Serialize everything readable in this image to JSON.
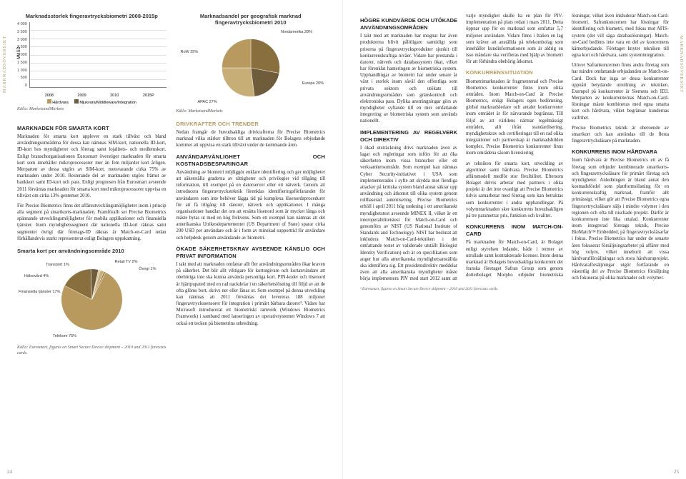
{
  "sideLabel": "MARKNADSÖVERSIKT",
  "pageLeft": "24",
  "pageRight": "25",
  "barChart": {
    "title": "Marknadsstorlek fingeravtrycksbiometri 2008-2015p",
    "ylabel": "MUSD",
    "yticks": [
      "4 000",
      "3 500",
      "3 000",
      "2 500",
      "2 000",
      "1 500",
      "1 000",
      "500",
      "0"
    ],
    "ymax": 4000,
    "categories": [
      "2008",
      "2009",
      "2010",
      "2015P"
    ],
    "hw": [
      900,
      1000,
      1150,
      2800
    ],
    "sw": [
      400,
      450,
      520,
      900
    ],
    "colors": {
      "hw": "#b89a5e",
      "sw": "#6f5c3a"
    },
    "legend": [
      "Hårdvara",
      "Mjukvara/Middleware/Integration"
    ],
    "source": "Källa: MarketsandMarkets"
  },
  "pieGeo": {
    "title": "Marknadsandel per geografisk marknad fingeravtrycksbiometri 2010",
    "slices": [
      {
        "label": "Nordamerika 28%",
        "value": 28,
        "color": "#8a6f3e"
      },
      {
        "label": "Europa 20%",
        "value": 20,
        "color": "#6f5c3a"
      },
      {
        "label": "APAC 27%",
        "value": 27,
        "color": "#c7ad76"
      },
      {
        "label": "RoW 25%",
        "value": 25,
        "color": "#b89a5e"
      }
    ],
    "source": "Källa: MarketsandMarkets"
  },
  "pieUse": {
    "title": "Smarta kort per användningsområde 2010",
    "slices": [
      {
        "label": "Telekom 75%",
        "value": 75,
        "color": "#b89a5e"
      },
      {
        "label": "Finansiella tjänster 17%",
        "value": 17,
        "color": "#8a6f3e"
      },
      {
        "label": "Hälsovård 4%",
        "value": 4,
        "color": "#6f5c3a"
      },
      {
        "label": "Transport 1%",
        "value": 1,
        "color": "#d6c29a"
      },
      {
        "label": "Retail TV 2%",
        "value": 2,
        "color": "#c7ad76"
      },
      {
        "label": "Övrigt 1%",
        "value": 1,
        "color": "#a08454"
      }
    ],
    "source": "Källa: Eurosmart, figures on Smart Secure Device shipment – 2010 and 2011 forecasts cards."
  },
  "left": {
    "h1": "MARKNADEN FÖR SMARTA KORT",
    "p1": "Marknaden för smarta kort upplever en stark tillväxt och bland användningsområdena för dessa kan nämnas SIM-kort, nationella ID-kort, ID-kort hos myndigheter och företag samt lojalitets- och medlemskort. Enligt branschorganisationen Eurosmart överstiger marknaden för smarta kort som innehåller mikroprocessorer mer än fem miljarder kort årligen. Merparten av dessa utgörs av SIM-kort, motsvarande cirka 75% av marknaden under 2010. Resterande del av marknaden utgörs främst av bankkort samt ID-kort och pass. Enligt prognosen från Eurosmart avseende 2011 förväntas marknaden för smarta kort med mikroprocessorer uppvisa en tillväxt om cirka 13% gentemot 2010.",
    "p2": "För Precise Biometrics finns det affärsutvecklingsmöjligheter inom i princip alla segment på smartkorts-marknaden. Framförallt ser Precise Biometrics spännande utvecklingsmöjligheter för mobila applikationer och finansiella tjänster. Inom myndighetssegment där nationella ID-kort räknas samt segmentet övrigt där företags-ID räknas är Match-on-Card redan förhållandevis starkt representerat enligt Bolagets uppskattning.",
    "h2": "DRIVKRAFTER OCH TRENDER",
    "p3": "Nedan framgår de huvudsakliga drivkrafterna för Precise Biometrics marknad vilka stärker tilltron till att marknaden för Bolagets erbjudande kommer att uppvisa en stark tillväxt under de kommande åren.",
    "h3": "ANVÄNDARVÄNLIGHET OCH KOSTNADSBESPARINGAR",
    "p4": "Användning av biometri möjliggör enklare identifiering och ger möjligheter att säkerställa graderna av rättigheter och privilegier vid tillgång till information, till exempel på en datorserver eller ett nätverk. Genom att introducera fingeravtrycksteknik förenklas identifieringsförfarandet för användaren som inte behöver lägga tid på komplexa lösenordsprocedurer för att få tillgång till datorer, nätverk och applikationer. I många organisationer handlar det om att ersätta lösenord som är mycket långa och måste bytas ut med en hög frekvens. Som ett exempel kan nämnas att det amerikanska Utrikesdepartementet (US Department of State) sparar cirka 200 USD per användare och år i form av minskad supporttid för användare och helpdesk genom användande av biometri.",
    "h4": "ÖKADE SÄKERHETSKRAV AVSEENDE KÄNSLIG OCH PRIVAT INFORMATION",
    "p5": "I takt med att marknaden omfattar allt fler användningsområden ökar kraven på säkerhet. Det blir allt viktigare för kortutgivare och kortanvändare att obehöriga inte ska kunna använda personliga kort. PIN-koder och lösenord är hjärtpupated med en rad nackdelar i en säkerhetslösning till följd av att de ofta glöms bort, skrivs ner eller lånas ut. Som exempel på denna utveckling kan nämnas att 2011 förväntas det levereras 188 miljoner fingeravtryckssensorer för integration i primärt bärbara datorer³. Vidare har Microsoft introducerat ett biometriskt ramverk (Windows Biometrics Framwork) i samband med lanseringen av operativsystemet Windows 7 att också ett tecken på biometrins utbredning."
  },
  "right": {
    "h1": "HÖGRE KUNDVÄRDE OCH UTÖKADE ANVÄNDNINGSOMRÅDEN",
    "p1": "I takt med att marknaden har mognat har även produkterna blivit pålitligare samtidigt som priserna på fingeravtrycksprodukter sjunkit till konkurrenskraftiga nivåer. Vidare har prestanda i datorer, nätverk och databassystem ökat, vilket har förenklat hanteringen av biometriska system. Upphandlingar av biometri har under senare år växt i storlek inom såväl den offentliga som privata sektorn och utökats till användningsområden som gränskontroll och elektroniska pass. Dylika ansträngningar görs av myndigheter syftande till en mer omfattande integrering av biometriska system som används nationellt.",
    "h2": "IMPLEMENTERING AV REGELVERK OCH DIREKTIV",
    "p2": "I ökad utsträckning drivs marknaden även av lagar och regleringar som införs för att öka säkerheten inom vissa branscher eller ett verksamhetsområde. Som exempel kan nämnas Cyber Security-initiativet i USA som implementerades i syfte att skydda mot fientliga attacker på kritiska system bland annat säkrar upp användning och åtkomst till olika system genom rollbaserad autentisering. Precise Biometrics erhöll i april 2011 hög rankning i ett amerikanskt myndighetstest avseende MINEX II, vilket är ett interoperabilitetstest för Match-on-Card och genomförs av NIST (US National Institute of Standards and Technology). NIST har beslutat att inkludera Match-on-Card-tekniken i det omfattande testet av validerade utställt Biologist Identity Verification) och är en specifikation som anger hur alla amerikanska myndighetsanställda ska identifiera sig. Ett presidentdirektiv meddelar även att alla amerikanska myndigheter måste börja implementera PIV med start 2012 samt att varje myndighet skulle ha en plan för PIV-implementation på plats redan i mars 2011. Detta öppnar upp för en marknad som omfattar 5,7 miljoner användare. Vidare finns i Italien en lag som kräver att anställda på telekombolag som innehåller kundinformationen som är aldrig en isso måndare ska verifieras med hjälp av biometri för att förhindra obehörig åtkomst.",
    "h3": "KONKURRENSSITUATION",
    "p3": "Biometrimarknaden är fragmenterad och Precise Biometrics konkurrenter finns inom olika områden. Inom Match-on-Card är Precise Biometrics, enligt Bolagets egen bedömning, global marknadsledare och antalet konkurrenter inom området är för närvarande begränsat. Till följd av att världens närmar regelmässigt områden, allt ifrån standardisering, myndighetskrav och certifieringar till en rad olika integrationer och partnerskap är marknadsbilden komplex. Precise Biometrics konkurrenter finns inom områdena såsom licensiering",
    "p4": "av tekniken för smarta kort, utveckling av algoritmer samt hårdvara. Precise Biometrics affärsmodell medför stor flexibilitet. Eftersom Bolaget delvis arbetar med partners i olika projekt är det inte ovanligt att Precise Biometrics tidvis samarbetar med företag som kan betraktas som konkurrenter i andra upphandlingar. På volymmarknaden sker konkurrens huvudsakligen på tre parametrar pris, funktion och kvalitet.",
    "h4": "KONKURRENS INOM MATCH-ON-CARD",
    "p5": "På marknaden för Match-on-Card, är Bolaget enligt styrelsen ledande, både i termer av utrullade samt kontrakterade licenser. Inom denna marknad är Bolagets huvudsakliga konkurrent det franska företaget Safran Group som genom dotterbolaget Morpho erbjuder biometriska lösningar, vilket även inkluderar Match-on-Card-biometri. Safrankoncernen har lösningar för identifiering och biometri, med fokus mot AFIS-system (det vill säga databaslösningar). Match-on-Card bedöms inte vara en del av koncernens kärnerbjudande. Företaget knyter tekniken till egna kort och hårdvara, samt systemintegration.",
    "p6": "Utöver Safrankoncernen finns andra företag som har mindre omfattande erbjudanden av Match-on-Card. Dock har inga av dessa konkurrenter uppnått betydande utrullning av tekniken. Exempel på konkurrenter är Siemens och ID3. Merparten av konkurrenternas Match-on-Card-lösningar måste kombineras med egna smarta kort och hårdvara, vilket begränsar kundernas valfrihet.",
    "p7": "Precise Biometrics teknik är oberoende av smartkort och kan användas till de flesta fingeravtrycksläsare på marknaden.",
    "h5": "KONKURRENS INOM HÅRDVARA",
    "p8": "Inom hårdvara är Precise Biometrics ett av få företag som erbjuder kombinerade smartkorts- och fingeravtrycksläsare för primärt företag och myndigheter. Anledningen är bland annat den kostnadsfördel som plattformslösning för en konkurrenskraftig marknad, framför allt primässigt, vilket gör att Precise Biometrics egna fingeravtrycksläsare säljs i mindre volymer i den regionen och ofta till nischade projekt. Därför är konkurrensen inte lika uttalad. Konkurrenter inom integrerad företags teknik, Precise BioMatch™ Embedded, på fingeravtrycksläsarfar i fokus. Precise Biometrics har under de senaste åren fokuserat försäljningsarbetet på affärer med hög volym, vilket inneburit att vissa hårdvaruflörsäljningar och stora hårdvaruprojekt. Hårdvaraförsäljningar utgör fortfarande en väsentlig del av Precise Biometrics försäljning och fokuseras på olika marknader och volymer.",
    "footnote": "³ Eurosmart, figures on Smart Secure Device shipment – 2010 and 2011 forecasts cards."
  }
}
